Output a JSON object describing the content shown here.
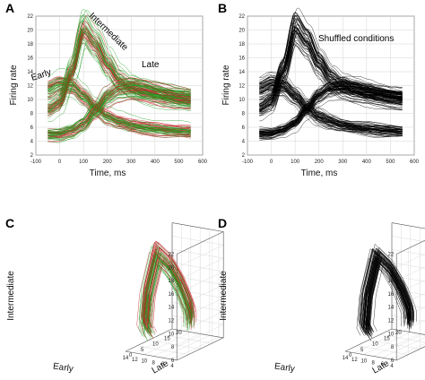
{
  "panel_labels": [
    "A",
    "B",
    "C",
    "D"
  ],
  "chart_data": [
    {
      "panel": "A",
      "type": "line",
      "xlabel": "Time, ms",
      "ylabel": "Firing rate",
      "xlim": [
        -100,
        600
      ],
      "ylim": [
        2,
        22
      ],
      "xticks": [
        -100,
        0,
        100,
        200,
        300,
        400,
        500,
        600
      ],
      "yticks": [
        2,
        4,
        6,
        8,
        10,
        12,
        14,
        16,
        18,
        20,
        22
      ],
      "x": [
        -50,
        0,
        50,
        100,
        150,
        200,
        250,
        300,
        350,
        400,
        450,
        500,
        550
      ],
      "annotations": [
        "Early",
        "Intermediate",
        "Late"
      ],
      "series": [
        {
          "group": "Early",
          "values": [
            11.5,
            12.3,
            12.0,
            10.5,
            8.8,
            7.5,
            6.8,
            6.3,
            6.0,
            5.8,
            5.6,
            5.5,
            5.4
          ]
        },
        {
          "group": "Intermediate",
          "values": [
            8.5,
            9.5,
            14.0,
            20.0,
            18.0,
            15.0,
            12.8,
            11.6,
            11.0,
            10.6,
            10.3,
            10.0,
            9.8
          ]
        },
        {
          "group": "Late",
          "values": [
            5.0,
            5.0,
            5.5,
            6.5,
            8.5,
            10.5,
            11.5,
            11.8,
            11.6,
            11.2,
            10.8,
            10.5,
            10.3
          ]
        }
      ],
      "colors": [
        "#1a9a1a",
        "#c8202a"
      ]
    },
    {
      "panel": "B",
      "type": "line",
      "title": "Shuffled conditions",
      "xlabel": "Time, ms",
      "ylabel": "Firing rate",
      "xlim": [
        -100,
        600
      ],
      "ylim": [
        2,
        22
      ],
      "xticks": [
        -100,
        0,
        100,
        200,
        300,
        400,
        500,
        600
      ],
      "yticks": [
        2,
        4,
        6,
        8,
        10,
        12,
        14,
        16,
        18,
        20,
        22
      ],
      "x": [
        -50,
        0,
        50,
        100,
        150,
        200,
        250,
        300,
        350,
        400,
        450,
        500,
        550
      ],
      "series": [
        {
          "group": "Early",
          "values": [
            11.5,
            12.3,
            12.0,
            10.5,
            8.8,
            7.5,
            6.8,
            6.3,
            6.0,
            5.8,
            5.6,
            5.5,
            5.4
          ]
        },
        {
          "group": "Intermediate",
          "values": [
            8.5,
            9.5,
            14.0,
            20.0,
            18.0,
            15.0,
            12.8,
            11.6,
            11.0,
            10.6,
            10.3,
            10.0,
            9.8
          ]
        },
        {
          "group": "Late",
          "values": [
            5.0,
            5.0,
            5.5,
            6.5,
            8.5,
            10.5,
            11.5,
            11.8,
            11.6,
            11.2,
            10.8,
            10.5,
            10.3
          ]
        }
      ],
      "colors": [
        "#000000"
      ]
    },
    {
      "panel": "C",
      "type": "line",
      "projection": "3d",
      "xlabel": "Early",
      "ylabel": "Late",
      "zlabel": "Intermediate",
      "xticks": [
        4,
        6,
        8,
        10,
        12,
        14
      ],
      "yticks": [
        0,
        5,
        10,
        15,
        20
      ],
      "zticks": [
        6,
        8,
        10,
        12,
        14,
        16,
        18,
        20,
        22
      ],
      "trajectory": {
        "early": [
          11.5,
          12.3,
          12.0,
          10.5,
          8.8,
          7.5,
          6.8,
          6.3,
          6.0,
          5.8,
          5.6,
          5.5,
          5.4
        ],
        "late": [
          5.0,
          5.0,
          5.5,
          6.5,
          8.5,
          10.5,
          11.5,
          11.8,
          11.6,
          11.2,
          10.8,
          10.5,
          10.3
        ],
        "intermediate": [
          8.5,
          9.5,
          14.0,
          20.0,
          18.0,
          15.0,
          12.8,
          11.6,
          11.0,
          10.6,
          10.3,
          10.0,
          9.8
        ]
      },
      "colors": [
        "#1a9a1a",
        "#c8202a"
      ]
    },
    {
      "panel": "D",
      "type": "line",
      "projection": "3d",
      "xlabel": "Early",
      "ylabel": "Late",
      "zlabel": "Intermediate",
      "xticks": [
        4,
        6,
        8,
        10,
        12,
        14
      ],
      "yticks": [
        0,
        5,
        10,
        15,
        20
      ],
      "zticks": [
        6,
        8,
        10,
        12,
        14,
        16,
        18,
        20,
        22
      ],
      "trajectory": {
        "early": [
          11.5,
          12.3,
          12.0,
          10.5,
          8.8,
          7.5,
          6.8,
          6.3,
          6.0,
          5.8,
          5.6,
          5.5,
          5.4
        ],
        "late": [
          5.0,
          5.0,
          5.5,
          6.5,
          8.5,
          10.5,
          11.5,
          11.8,
          11.6,
          11.2,
          10.8,
          10.5,
          10.3
        ],
        "intermediate": [
          8.5,
          9.5,
          14.0,
          20.0,
          18.0,
          15.0,
          12.8,
          11.6,
          11.0,
          10.6,
          10.3,
          10.0,
          9.8
        ]
      },
      "colors": [
        "#000000"
      ]
    }
  ]
}
